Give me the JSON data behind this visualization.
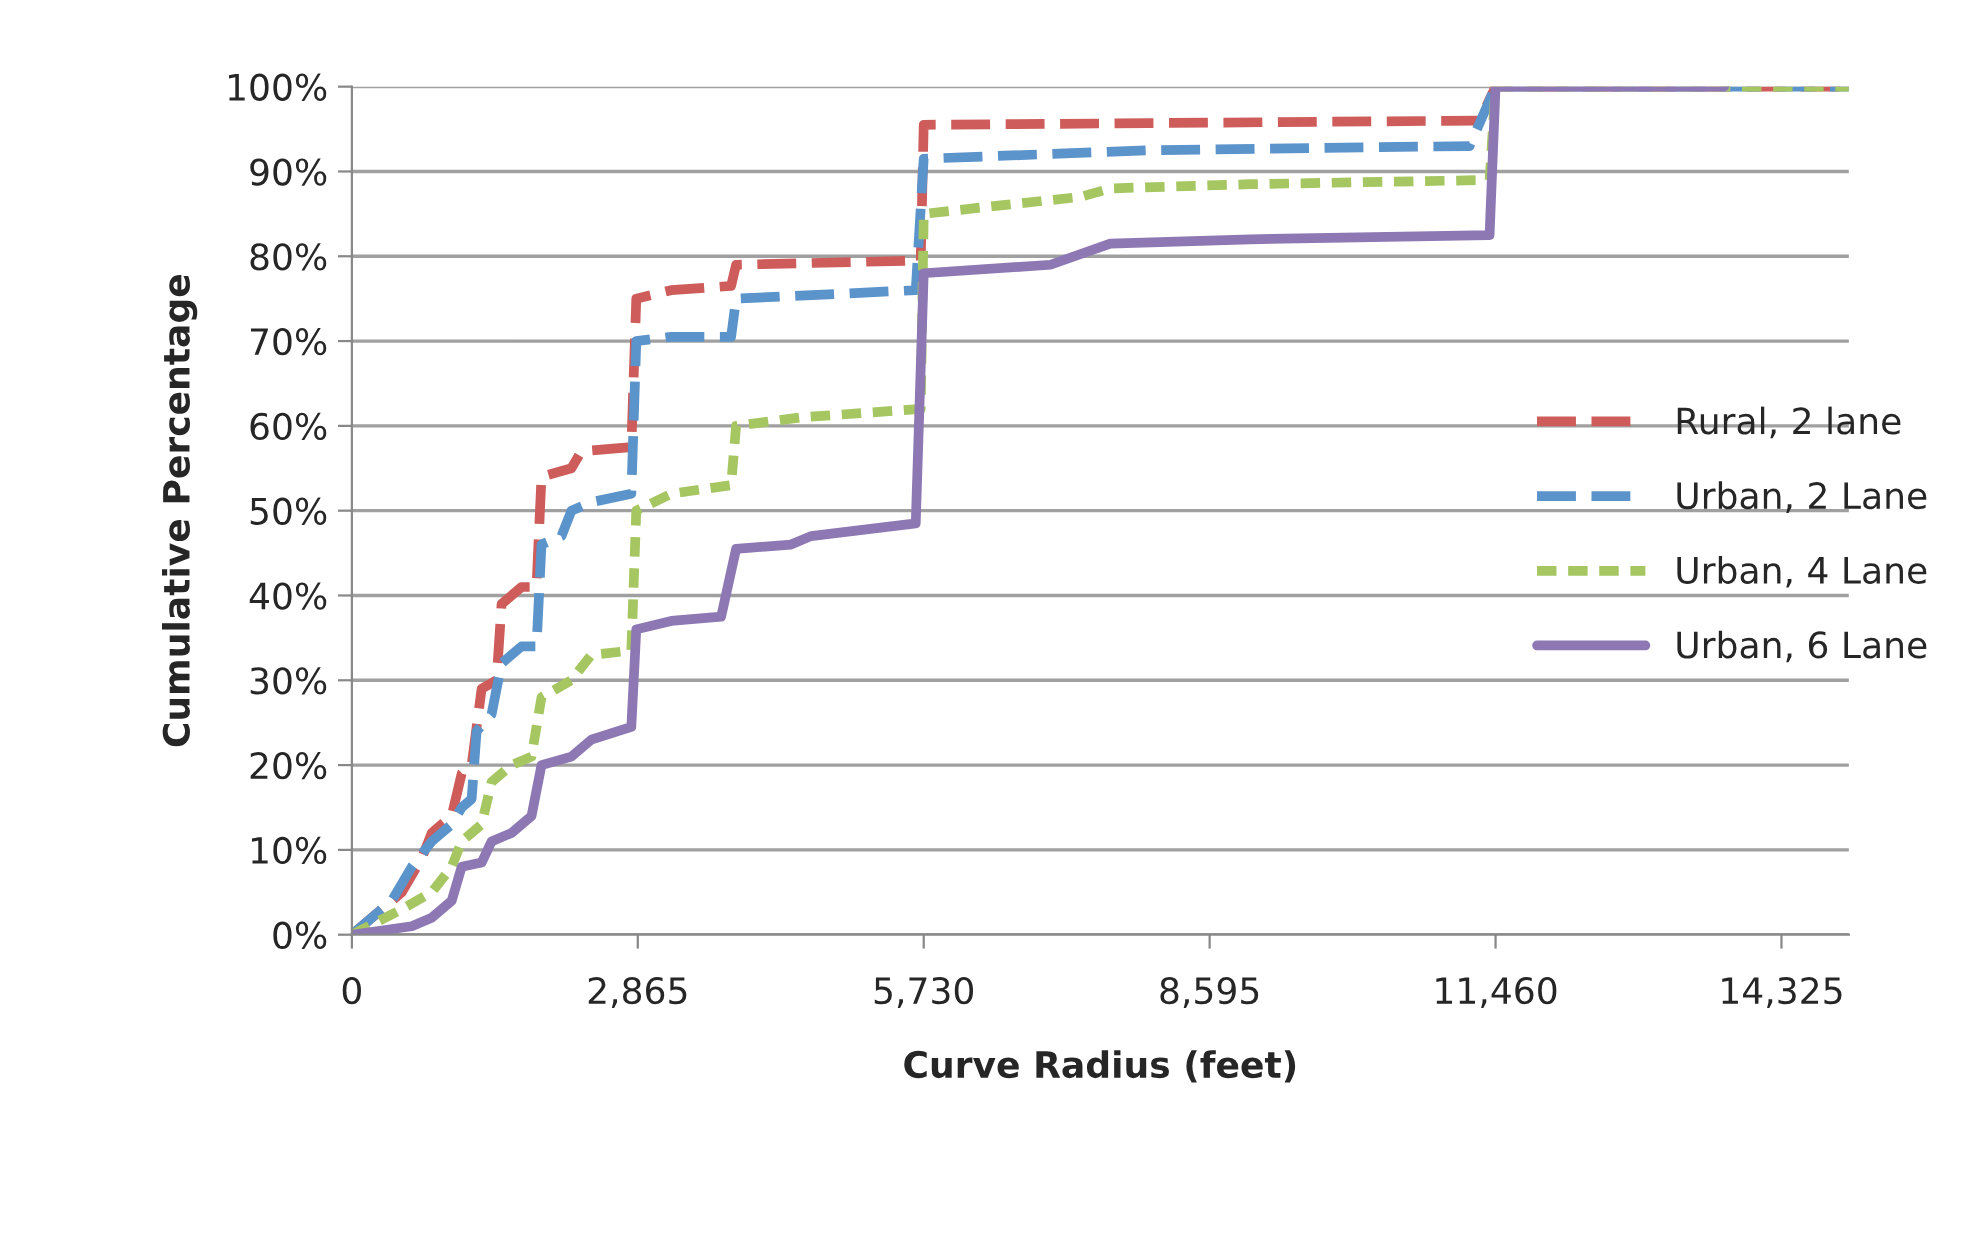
{
  "chart_data": {
    "type": "line",
    "xlabel": "Curve Radius (feet)",
    "ylabel": "Cumulative Percentage",
    "xlim": [
      0,
      15000
    ],
    "xticks": [
      0,
      {
        "value": 2865,
        "label": "2,865"
      },
      {
        "value": 5730,
        "label": "5,730"
      },
      {
        "value": 8595,
        "label": "8,595"
      },
      {
        "value": 11460,
        "label": "11,460"
      },
      {
        "value": 14325,
        "label": "14,325"
      }
    ],
    "ylim": [
      0,
      100
    ],
    "yticks": [
      {
        "value": 0,
        "label": "0%"
      },
      {
        "value": 10,
        "label": "10%"
      },
      {
        "value": 20,
        "label": "20%"
      },
      {
        "value": 30,
        "label": "30%"
      },
      {
        "value": 40,
        "label": "40%"
      },
      {
        "value": 50,
        "label": "50%"
      },
      {
        "value": 60,
        "label": "60%"
      },
      {
        "value": 70,
        "label": "70%"
      },
      {
        "value": 80,
        "label": "80%"
      },
      {
        "value": 90,
        "label": "90%"
      },
      {
        "value": 100,
        "label": "100%"
      }
    ],
    "grid": "y",
    "legend": "right",
    "marker": "none",
    "series": [
      {
        "name": "Rural, 2 lane",
        "color": "#cd5c5a",
        "line_style": "dashed",
        "x": [
          0,
          500,
          700,
          800,
          1000,
          1100,
          1200,
          1300,
          1450,
          1500,
          1700,
          1850,
          1900,
          2200,
          2300,
          2800,
          2850,
          3200,
          3800,
          3850,
          5700,
          5730,
          8000,
          11300,
          11460,
          15000
        ],
        "values": [
          0,
          5,
          9,
          12,
          14,
          19,
          20,
          29,
          30,
          39,
          41,
          41,
          54,
          55,
          57,
          57.5,
          75,
          76,
          76.5,
          79,
          79.5,
          95.5,
          95.7,
          96,
          100,
          100
        ]
      },
      {
        "name": "Urban, 2 Lane",
        "color": "#5b93cb",
        "line_style": "dashed",
        "x": [
          0,
          400,
          600,
          800,
          1000,
          1100,
          1200,
          1250,
          1400,
          1500,
          1700,
          1850,
          1900,
          2100,
          2200,
          2400,
          2800,
          2850,
          3200,
          3800,
          3850,
          5650,
          5730,
          8000,
          11200,
          11460,
          15000
        ],
        "values": [
          0,
          4,
          8,
          11,
          13,
          15,
          16,
          24,
          26,
          32,
          34,
          34,
          46,
          47,
          50,
          51,
          52,
          70,
          70.5,
          70.5,
          75,
          76,
          91.5,
          92.5,
          93,
          100,
          100
        ]
      },
      {
        "name": "Urban, 4 Lane",
        "color": "#a6c662",
        "line_style": "dotted",
        "x": [
          0,
          500,
          800,
          1000,
          1100,
          1300,
          1400,
          1600,
          1800,
          1900,
          2200,
          2400,
          2800,
          2850,
          3200,
          3800,
          3850,
          4500,
          5700,
          5730,
          6500,
          7300,
          7600,
          9000,
          11400,
          11460,
          15000
        ],
        "values": [
          0,
          3,
          5,
          8,
          11,
          13,
          18,
          20,
          21,
          28,
          30,
          33,
          33.5,
          50,
          52,
          53,
          60,
          61,
          62,
          85,
          86,
          87,
          88,
          88.5,
          89,
          100,
          100
        ]
      },
      {
        "name": "Urban, 6 Lane",
        "color": "#8e78b4",
        "line_style": "solid",
        "x": [
          0,
          600,
          800,
          1000,
          1100,
          1300,
          1400,
          1600,
          1800,
          1900,
          2200,
          2400,
          2800,
          2850,
          3200,
          3700,
          3850,
          4400,
          4600,
          5650,
          5730,
          7000,
          7600,
          9000,
          11400,
          11460,
          13750
        ],
        "values": [
          0,
          1,
          2,
          4,
          8,
          8.5,
          11,
          12,
          14,
          20,
          21,
          23,
          24.5,
          36,
          37,
          37.5,
          45.5,
          46,
          47,
          48.5,
          78,
          79,
          81.5,
          82,
          82.5,
          100,
          100
        ]
      }
    ]
  }
}
